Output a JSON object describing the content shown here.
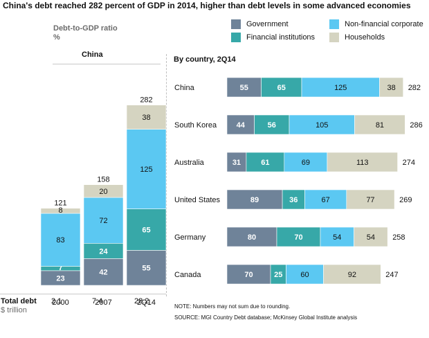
{
  "title": "China's debt reached 282 percent of GDP in 2014, higher than debt levels in some advanced economies",
  "ratio_label": "Debt-to-GDP ratio",
  "ratio_unit": "%",
  "colors": {
    "Government": "#6f8399",
    "Financial institutions": "#37a8a8",
    "Non-financial corporate": "#5bc8f2",
    "Households": "#d5d4c1"
  },
  "legend": [
    "Government",
    "Non-financial corporate",
    "Financial institutions",
    "Households"
  ],
  "left_panel_title": "China",
  "right_panel_title": "By country, 2Q14",
  "total_debt_label": "Total debt",
  "total_debt_unit": "$ trillion",
  "total_debt_values": [
    "2.1",
    "7.4",
    "28.2"
  ],
  "note": "NOTE: Numbers may not sum due to rounding.",
  "source": "SOURCE:  MGI Country Debt database; McKinsey Global Institute analysis",
  "chart_data": [
    {
      "type": "bar",
      "orientation": "vertical",
      "stacked": true,
      "title": "China",
      "categories": [
        "2000",
        "2007",
        "2Q14"
      ],
      "series": [
        {
          "name": "Government",
          "values": [
            23,
            42,
            55
          ]
        },
        {
          "name": "Financial institutions",
          "values": [
            7,
            24,
            65
          ]
        },
        {
          "name": "Non-financial corporate",
          "values": [
            83,
            72,
            125
          ]
        },
        {
          "name": "Households",
          "values": [
            8,
            20,
            38
          ]
        }
      ],
      "totals": [
        121,
        158,
        282
      ]
    },
    {
      "type": "bar",
      "orientation": "horizontal",
      "stacked": true,
      "title": "By country, 2Q14",
      "categories": [
        "China",
        "South Korea",
        "Australia",
        "United States",
        "Germany",
        "Canada"
      ],
      "series": [
        {
          "name": "Government",
          "values": [
            55,
            44,
            31,
            89,
            80,
            70
          ]
        },
        {
          "name": "Financial institutions",
          "values": [
            65,
            56,
            61,
            36,
            70,
            25
          ]
        },
        {
          "name": "Non-financial corporate",
          "values": [
            125,
            105,
            69,
            67,
            54,
            60
          ]
        },
        {
          "name": "Households",
          "values": [
            38,
            81,
            113,
            77,
            54,
            92
          ]
        }
      ],
      "totals": [
        282,
        286,
        274,
        269,
        258,
        247
      ]
    }
  ]
}
